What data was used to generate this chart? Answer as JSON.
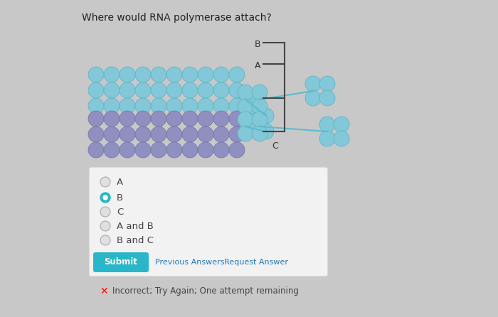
{
  "bg_color": "#c8c8c8",
  "panel_bg": "#f0f0f0",
  "title": "Where would RNA polymerase attach?",
  "title_fontsize": 10,
  "options": [
    "A",
    "B",
    "C",
    "A and B",
    "B and C"
  ],
  "selected_option": 1,
  "submit_text": "Submit",
  "submit_color": "#29b6c8",
  "prev_answers_text": "Previous Answers",
  "request_answer_text": "Request Answer",
  "incorrect_text": "Incorrect; Try Again; One attempt remaining",
  "dna_teal": "#82c8d8",
  "dna_teal_ec": "#5ab0c0",
  "dna_purple": "#9090c0",
  "dna_purple_ec": "#7070a8",
  "line_color": "#444444",
  "teal_line": "#5abccc",
  "label_color": "#333333"
}
